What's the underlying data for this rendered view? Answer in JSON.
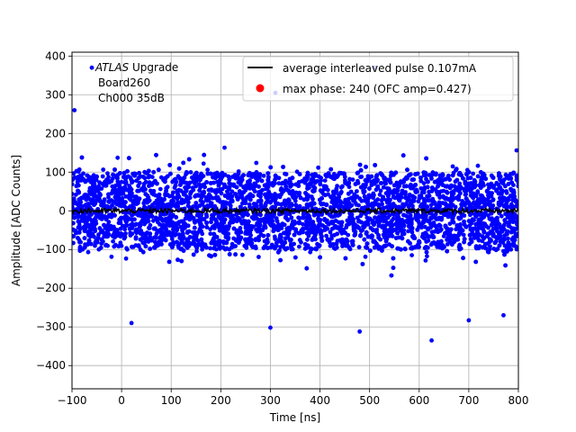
{
  "chart_data": {
    "type": "scatter",
    "xlabel": "Time [ns]",
    "ylabel": "Amplitude [ADC Counts]",
    "xlim": [
      -100,
      800
    ],
    "ylim": [
      -460,
      410
    ],
    "xticks": [
      -100,
      0,
      100,
      200,
      300,
      400,
      500,
      600,
      700,
      800
    ],
    "yticks": [
      -400,
      -300,
      -200,
      -100,
      0,
      100,
      200,
      300,
      400
    ],
    "grid": true,
    "legend_position": "top-right",
    "annotation": {
      "italic": "ATLAS",
      "rest": " Upgrade",
      "line2": "Board260",
      "line3": "Ch000 35dB"
    },
    "series": [
      {
        "name": "average interleaved pulse 0.107mA",
        "kind": "line",
        "color": "#000000",
        "description": "flat average pulse near zero with small noise",
        "x_range": [
          -100,
          800
        ],
        "level": 0,
        "noise_amplitude": 6
      },
      {
        "name": "max phase: 240 (OFC amp=0.427)",
        "kind": "scatter",
        "color": "#ff0000",
        "legend_only": true
      },
      {
        "name": "",
        "kind": "scatter",
        "color": "#0000ff",
        "description": "dense noise samples spanning the full time range",
        "x_range": [
          -100,
          800
        ],
        "core_range": [
          -100,
          100
        ],
        "extreme_points": [
          {
            "x": -60,
            "y": 370
          },
          {
            "x": 510,
            "y": 370
          },
          {
            "x": 310,
            "y": 305
          },
          {
            "x": -95,
            "y": 260
          },
          {
            "x": 625,
            "y": -335
          },
          {
            "x": 300,
            "y": -302
          },
          {
            "x": 480,
            "y": -312
          },
          {
            "x": 700,
            "y": -283
          },
          {
            "x": 20,
            "y": -290
          },
          {
            "x": 770,
            "y": -270
          }
        ]
      }
    ]
  }
}
